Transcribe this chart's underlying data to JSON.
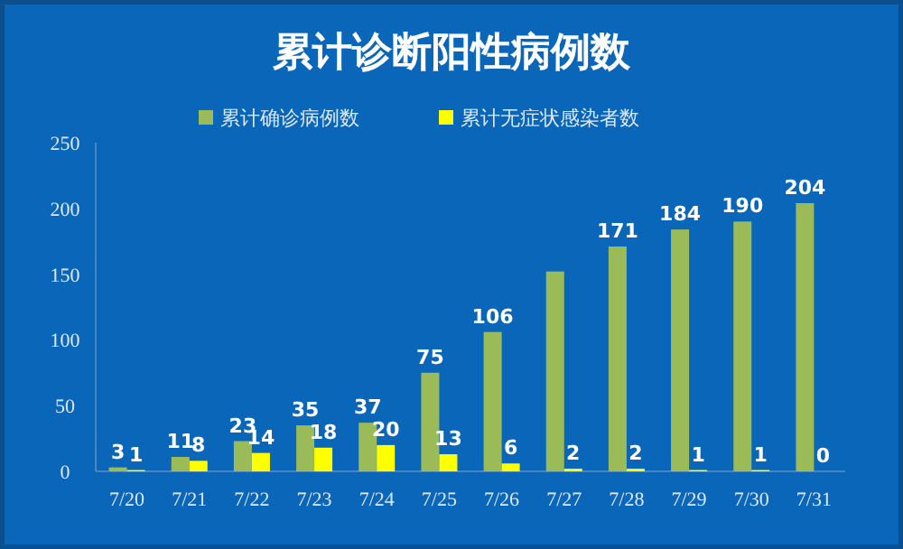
{
  "chart_data": {
    "type": "bar",
    "title": "累计诊断阳性病例数",
    "categories": [
      "7/20",
      "7/21",
      "7/22",
      "7/23",
      "7/24",
      "7/25",
      "7/26",
      "7/27",
      "7/28",
      "7/29",
      "7/30",
      "7/31"
    ],
    "series": [
      {
        "name": "累计确诊病例数",
        "color": "#9bbb59",
        "values": [
          3,
          11,
          23,
          35,
          37,
          75,
          106,
          152,
          171,
          184,
          190,
          204
        ],
        "value_labels": [
          "3",
          "11",
          "23",
          "35",
          "37",
          "75",
          "106",
          null,
          "171",
          "184",
          "190",
          "204"
        ]
      },
      {
        "name": "累计无症状感染者数",
        "color": "#ffff00",
        "values": [
          1,
          8,
          14,
          18,
          20,
          13,
          6,
          2,
          2,
          1,
          1,
          0
        ],
        "value_labels": [
          "1",
          "8",
          "14",
          "18",
          "20",
          "13",
          "6",
          "2",
          "2",
          "1",
          "1",
          "0"
        ]
      }
    ],
    "ylim": [
      0,
      250
    ],
    "yticks": [
      0,
      50,
      100,
      150,
      200,
      250
    ],
    "grid": false,
    "legend": "top"
  }
}
